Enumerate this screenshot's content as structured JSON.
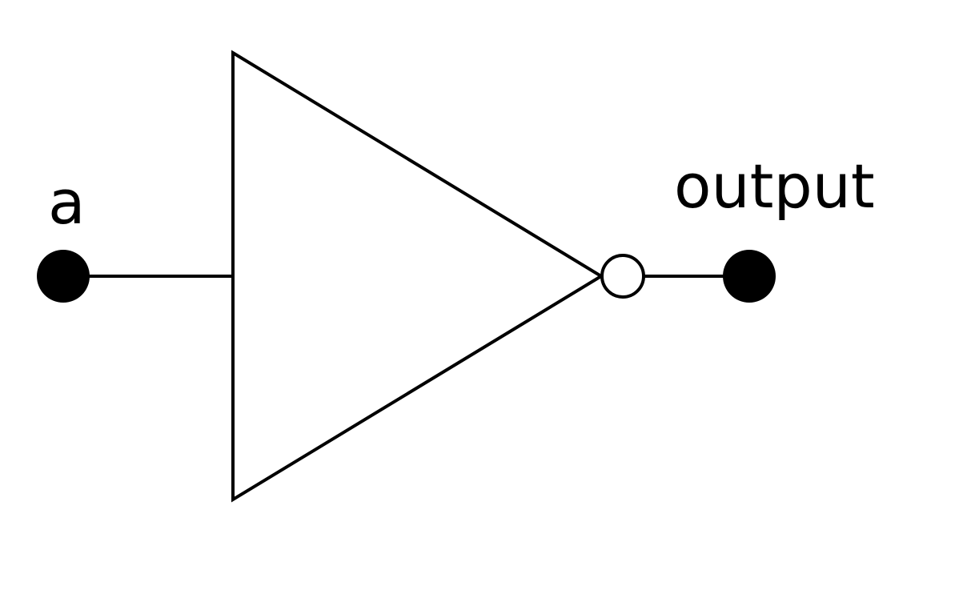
{
  "diagram": {
    "gate": "NOT",
    "input": {
      "label": "a"
    },
    "output": {
      "label": "output"
    },
    "colors": {
      "line": "#000000",
      "terminal": "#000000",
      "bubble_fill": "#ffffff",
      "background": "#ffffff"
    }
  }
}
